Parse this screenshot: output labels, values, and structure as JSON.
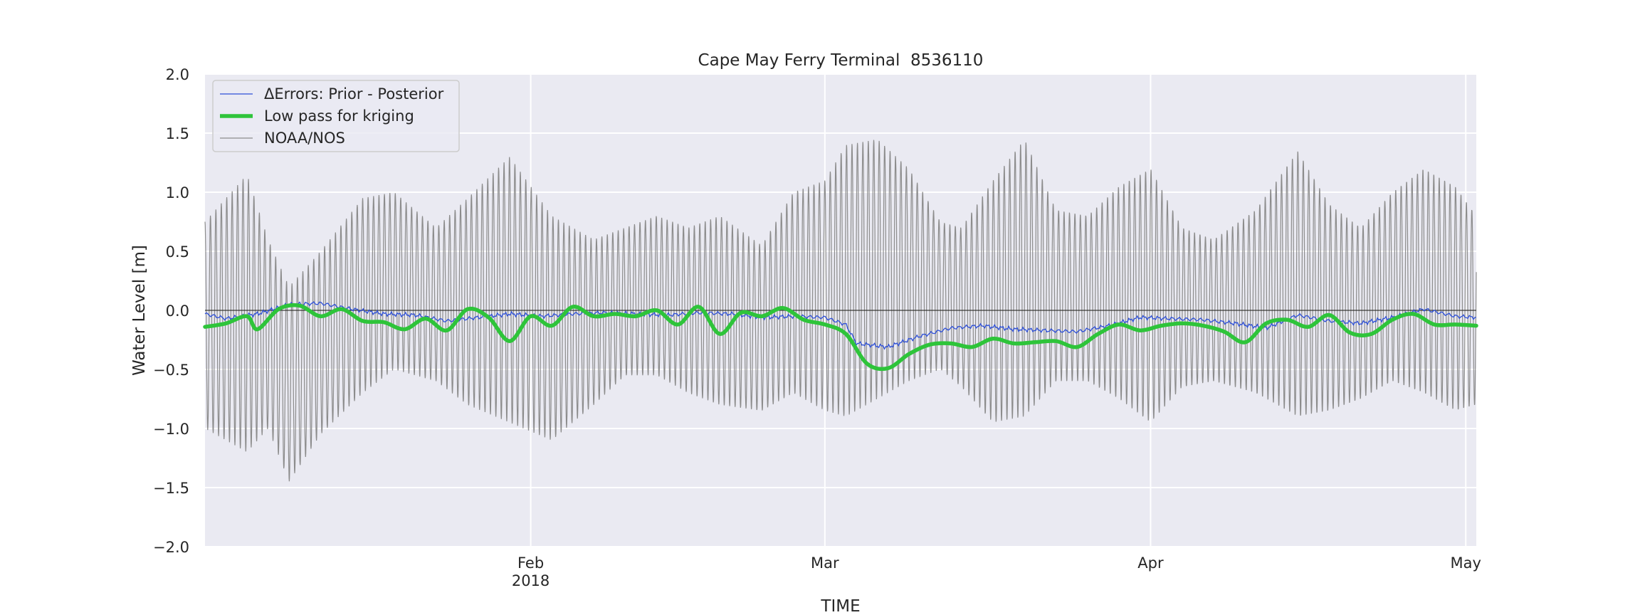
{
  "chart_data": {
    "type": "line",
    "title": "Cape May Ferry Terminal  8536110",
    "xlabel": "TIME",
    "ylabel": "Water Level [m]",
    "x_range": [
      "2018-01-01",
      "2018-05-02"
    ],
    "ylim": [
      -2.0,
      2.0
    ],
    "yticks": [
      "2.0",
      "1.5",
      "1.0",
      "0.5",
      "0.0",
      "−0.5",
      "−1.0",
      "−1.5",
      "−2.0"
    ],
    "ytick_values": [
      2.0,
      1.5,
      1.0,
      0.5,
      0.0,
      -0.5,
      -1.0,
      -1.5,
      -2.0
    ],
    "xticks": [
      {
        "date": "2018-02-01",
        "label": "Feb",
        "sublabel": "2018"
      },
      {
        "date": "2018-03-01",
        "label": "Mar",
        "sublabel": ""
      },
      {
        "date": "2018-04-01",
        "label": "Apr",
        "sublabel": ""
      },
      {
        "date": "2018-05-01",
        "label": "May",
        "sublabel": ""
      }
    ],
    "grid": true,
    "legend_position": "top-left",
    "reference_line": 0.0,
    "series": [
      {
        "name": "ΔErrors: Prior - Posterior",
        "color": "#2d4fd8",
        "style": "thin",
        "dates": [
          "2018-01-01",
          "2018-01-03",
          "2018-01-06",
          "2018-01-09",
          "2018-01-12",
          "2018-01-15",
          "2018-01-18",
          "2018-01-21",
          "2018-01-24",
          "2018-01-27",
          "2018-01-30",
          "2018-02-02",
          "2018-02-05",
          "2018-02-08",
          "2018-02-11",
          "2018-02-14",
          "2018-02-17",
          "2018-02-20",
          "2018-02-23",
          "2018-02-26",
          "2018-03-01",
          "2018-03-03",
          "2018-03-04",
          "2018-03-07",
          "2018-03-10",
          "2018-03-13",
          "2018-03-16",
          "2018-03-19",
          "2018-03-22",
          "2018-03-25",
          "2018-03-28",
          "2018-03-31",
          "2018-04-03",
          "2018-04-06",
          "2018-04-09",
          "2018-04-12",
          "2018-04-15",
          "2018-04-18",
          "2018-04-21",
          "2018-04-24",
          "2018-04-27",
          "2018-04-30",
          "2018-05-02"
        ],
        "values": [
          -0.03,
          -0.07,
          -0.03,
          0.05,
          0.06,
          0.01,
          -0.03,
          -0.04,
          -0.09,
          -0.06,
          -0.03,
          -0.05,
          -0.03,
          -0.02,
          -0.03,
          -0.04,
          -0.02,
          -0.03,
          -0.06,
          -0.05,
          -0.06,
          -0.12,
          -0.28,
          -0.31,
          -0.22,
          -0.15,
          -0.13,
          -0.16,
          -0.17,
          -0.18,
          -0.13,
          -0.06,
          -0.07,
          -0.08,
          -0.11,
          -0.15,
          -0.04,
          -0.09,
          -0.11,
          -0.06,
          0.01,
          -0.05,
          -0.06
        ]
      },
      {
        "name": "Low pass for kriging",
        "color": "#2ec43a",
        "style": "thick",
        "dates": [
          "2018-01-01",
          "2018-01-03",
          "2018-01-05",
          "2018-01-06",
          "2018-01-08",
          "2018-01-10",
          "2018-01-12",
          "2018-01-14",
          "2018-01-16",
          "2018-01-18",
          "2018-01-20",
          "2018-01-22",
          "2018-01-24",
          "2018-01-26",
          "2018-01-28",
          "2018-01-30",
          "2018-02-01",
          "2018-02-03",
          "2018-02-05",
          "2018-02-07",
          "2018-02-09",
          "2018-02-11",
          "2018-02-13",
          "2018-02-15",
          "2018-02-17",
          "2018-02-19",
          "2018-02-21",
          "2018-02-23",
          "2018-02-25",
          "2018-02-27",
          "2018-03-01",
          "2018-03-03",
          "2018-03-05",
          "2018-03-07",
          "2018-03-09",
          "2018-03-11",
          "2018-03-13",
          "2018-03-15",
          "2018-03-17",
          "2018-03-19",
          "2018-03-21",
          "2018-03-23",
          "2018-03-25",
          "2018-03-27",
          "2018-03-29",
          "2018-03-31",
          "2018-04-02",
          "2018-04-04",
          "2018-04-06",
          "2018-04-08",
          "2018-04-10",
          "2018-04-12",
          "2018-04-14",
          "2018-04-16",
          "2018-04-18",
          "2018-04-20",
          "2018-04-22",
          "2018-04-24",
          "2018-04-26",
          "2018-04-28",
          "2018-04-30",
          "2018-05-02"
        ],
        "values": [
          -0.14,
          -0.11,
          -0.05,
          -0.16,
          0.01,
          0.04,
          -0.05,
          0.01,
          -0.09,
          -0.1,
          -0.16,
          -0.07,
          -0.17,
          0.01,
          -0.06,
          -0.26,
          -0.05,
          -0.13,
          0.03,
          -0.05,
          -0.03,
          -0.05,
          0.0,
          -0.12,
          0.03,
          -0.2,
          -0.02,
          -0.05,
          0.02,
          -0.08,
          -0.12,
          -0.2,
          -0.45,
          -0.49,
          -0.37,
          -0.29,
          -0.28,
          -0.31,
          -0.24,
          -0.28,
          -0.27,
          -0.26,
          -0.31,
          -0.2,
          -0.12,
          -0.17,
          -0.13,
          -0.11,
          -0.13,
          -0.18,
          -0.27,
          -0.11,
          -0.08,
          -0.14,
          -0.04,
          -0.19,
          -0.2,
          -0.08,
          -0.03,
          -0.12,
          -0.12,
          -0.13
        ]
      },
      {
        "name": "NOAA/NOS",
        "color": "#8c8c8c",
        "style": "thin",
        "description_of_signal": "semi-diurnal tide",
        "period_days": 0.5175,
        "envelope_dates": [
          "2018-01-01",
          "2018-01-04",
          "2018-01-05",
          "2018-01-07",
          "2018-01-09",
          "2018-01-12",
          "2018-01-16",
          "2018-01-19",
          "2018-01-23",
          "2018-01-26",
          "2018-01-30",
          "2018-02-03",
          "2018-02-07",
          "2018-02-10",
          "2018-02-13",
          "2018-02-16",
          "2018-02-19",
          "2018-02-23",
          "2018-02-26",
          "2018-03-01",
          "2018-03-03",
          "2018-03-06",
          "2018-03-09",
          "2018-03-12",
          "2018-03-14",
          "2018-03-17",
          "2018-03-20",
          "2018-03-23",
          "2018-03-26",
          "2018-03-29",
          "2018-04-01",
          "2018-04-04",
          "2018-04-07",
          "2018-04-11",
          "2018-04-15",
          "2018-04-18",
          "2018-04-21",
          "2018-04-24",
          "2018-04-27",
          "2018-04-30",
          "2018-05-02"
        ],
        "high_envelope": [
          0.75,
          1.05,
          1.15,
          0.6,
          0.2,
          0.5,
          0.95,
          1.0,
          0.7,
          0.95,
          1.3,
          0.8,
          0.6,
          0.7,
          0.8,
          0.7,
          0.8,
          0.55,
          1.0,
          1.1,
          1.4,
          1.45,
          1.2,
          0.75,
          0.7,
          1.1,
          1.45,
          0.85,
          0.8,
          1.05,
          1.2,
          0.7,
          0.6,
          0.85,
          1.35,
          0.9,
          0.7,
          1.0,
          1.2,
          1.05,
          0.8
        ],
        "low_envelope": [
          -1.0,
          -1.15,
          -1.2,
          -1.0,
          -1.45,
          -1.05,
          -0.7,
          -0.5,
          -0.6,
          -0.8,
          -0.95,
          -1.1,
          -0.8,
          -0.55,
          -0.55,
          -0.7,
          -0.8,
          -0.85,
          -0.7,
          -0.85,
          -0.9,
          -0.75,
          -0.6,
          -0.5,
          -0.65,
          -0.95,
          -0.9,
          -0.6,
          -0.6,
          -0.75,
          -0.95,
          -0.65,
          -0.6,
          -0.7,
          -0.9,
          -0.85,
          -0.75,
          -0.6,
          -0.7,
          -0.85,
          -0.8
        ]
      }
    ]
  }
}
